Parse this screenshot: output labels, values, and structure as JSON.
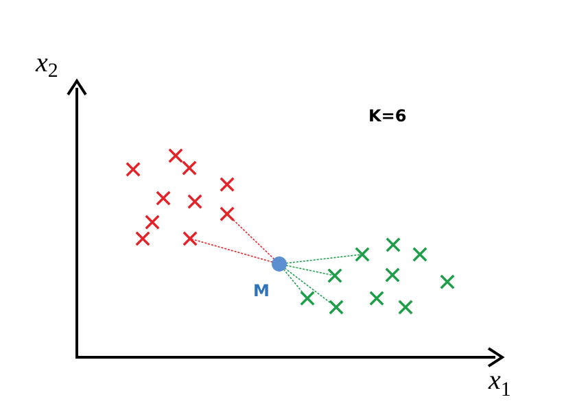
{
  "axes": {
    "x_label_main": "x",
    "x_label_sub": "1",
    "y_label_main": "x",
    "y_label_sub": "2"
  },
  "k_label": "K=6",
  "query_label": "M",
  "colors": {
    "class_a": "#e3232a",
    "class_b": "#1e9e4a",
    "query": "#5b8fd1",
    "query_label": "#2f73b8",
    "axis": "#000000"
  },
  "icons": {
    "sample_marker": "cross-marker-icon",
    "query_marker": "filled-circle-icon"
  },
  "class_a_points": [
    [
      256,
      227
    ],
    [
      276,
      245
    ],
    [
      194,
      247
    ],
    [
      331,
      269
    ],
    [
      238,
      289
    ],
    [
      284,
      294
    ],
    [
      331,
      312
    ],
    [
      222,
      324
    ],
    [
      208,
      348
    ],
    [
      277,
      348
    ]
  ],
  "class_b_points": [
    [
      528,
      371
    ],
    [
      573,
      357
    ],
    [
      612,
      371
    ],
    [
      488,
      402
    ],
    [
      572,
      401
    ],
    [
      652,
      411
    ],
    [
      448,
      435
    ],
    [
      490,
      448
    ],
    [
      549,
      435
    ],
    [
      591,
      448
    ]
  ],
  "query_point": [
    407,
    385
  ],
  "neighbors": [
    {
      "class": "a",
      "index": 6
    },
    {
      "class": "a",
      "index": 9
    },
    {
      "class": "b",
      "index": 0
    },
    {
      "class": "b",
      "index": 3
    },
    {
      "class": "b",
      "index": 6
    },
    {
      "class": "b",
      "index": 7
    }
  ]
}
